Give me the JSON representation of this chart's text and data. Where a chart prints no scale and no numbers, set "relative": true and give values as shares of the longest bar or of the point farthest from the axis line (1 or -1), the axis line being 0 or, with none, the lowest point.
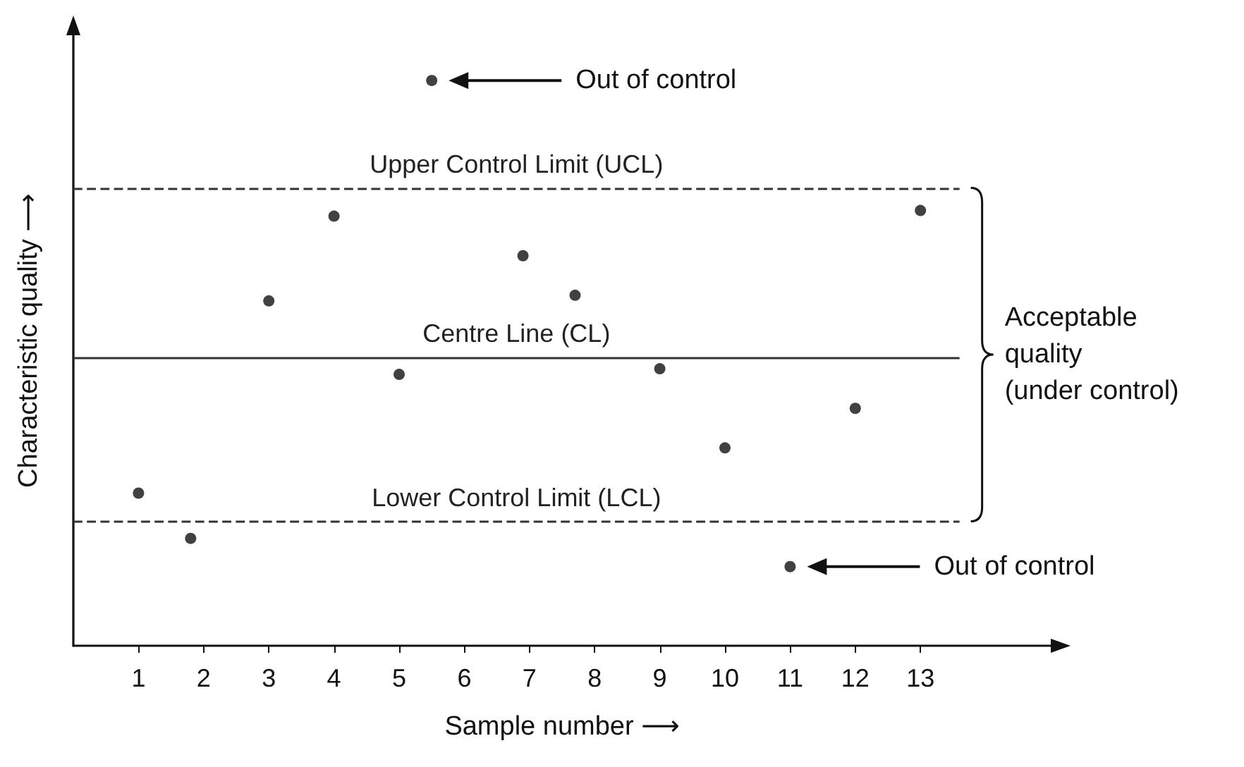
{
  "chart_data": {
    "type": "scatter",
    "xlabel": "Sample number ⟶",
    "ylabel": "Characteristic quality ⟶",
    "x": [
      1,
      1.8,
      3,
      4,
      5,
      5.5,
      6.9,
      7.7,
      9,
      10,
      11,
      12,
      13
    ],
    "values": [
      0.27,
      0.19,
      0.61,
      0.76,
      0.48,
      1,
      0.69,
      0.62,
      0.49,
      0.35,
      0.14,
      0.42,
      0.77
    ],
    "relative": true,
    "color": "#111111",
    "marker": "circle",
    "tick_labels": "x",
    "xlim": [
      0,
      15
    ],
    "xticks": [
      1,
      2,
      3,
      4,
      5,
      6,
      7,
      8,
      9,
      10,
      11,
      12,
      13
    ],
    "ref_lines": [
      {
        "axis": "y",
        "value": 0.81,
        "label": "Upper Control Limit (UCL)",
        "line_style": "dashed",
        "color": "#333333"
      },
      {
        "axis": "y",
        "value": 0.51,
        "label": "Centre Line (CL)",
        "line_style": "solid",
        "color": "#333333"
      },
      {
        "axis": "y",
        "value": 0.22,
        "label": "Lower Control Limit (LCL)",
        "line_style": "dashed",
        "color": "#333333"
      }
    ],
    "annotations": [
      "Out of control",
      "Out of control",
      "Acceptable\nquality\n(under control)"
    ]
  }
}
